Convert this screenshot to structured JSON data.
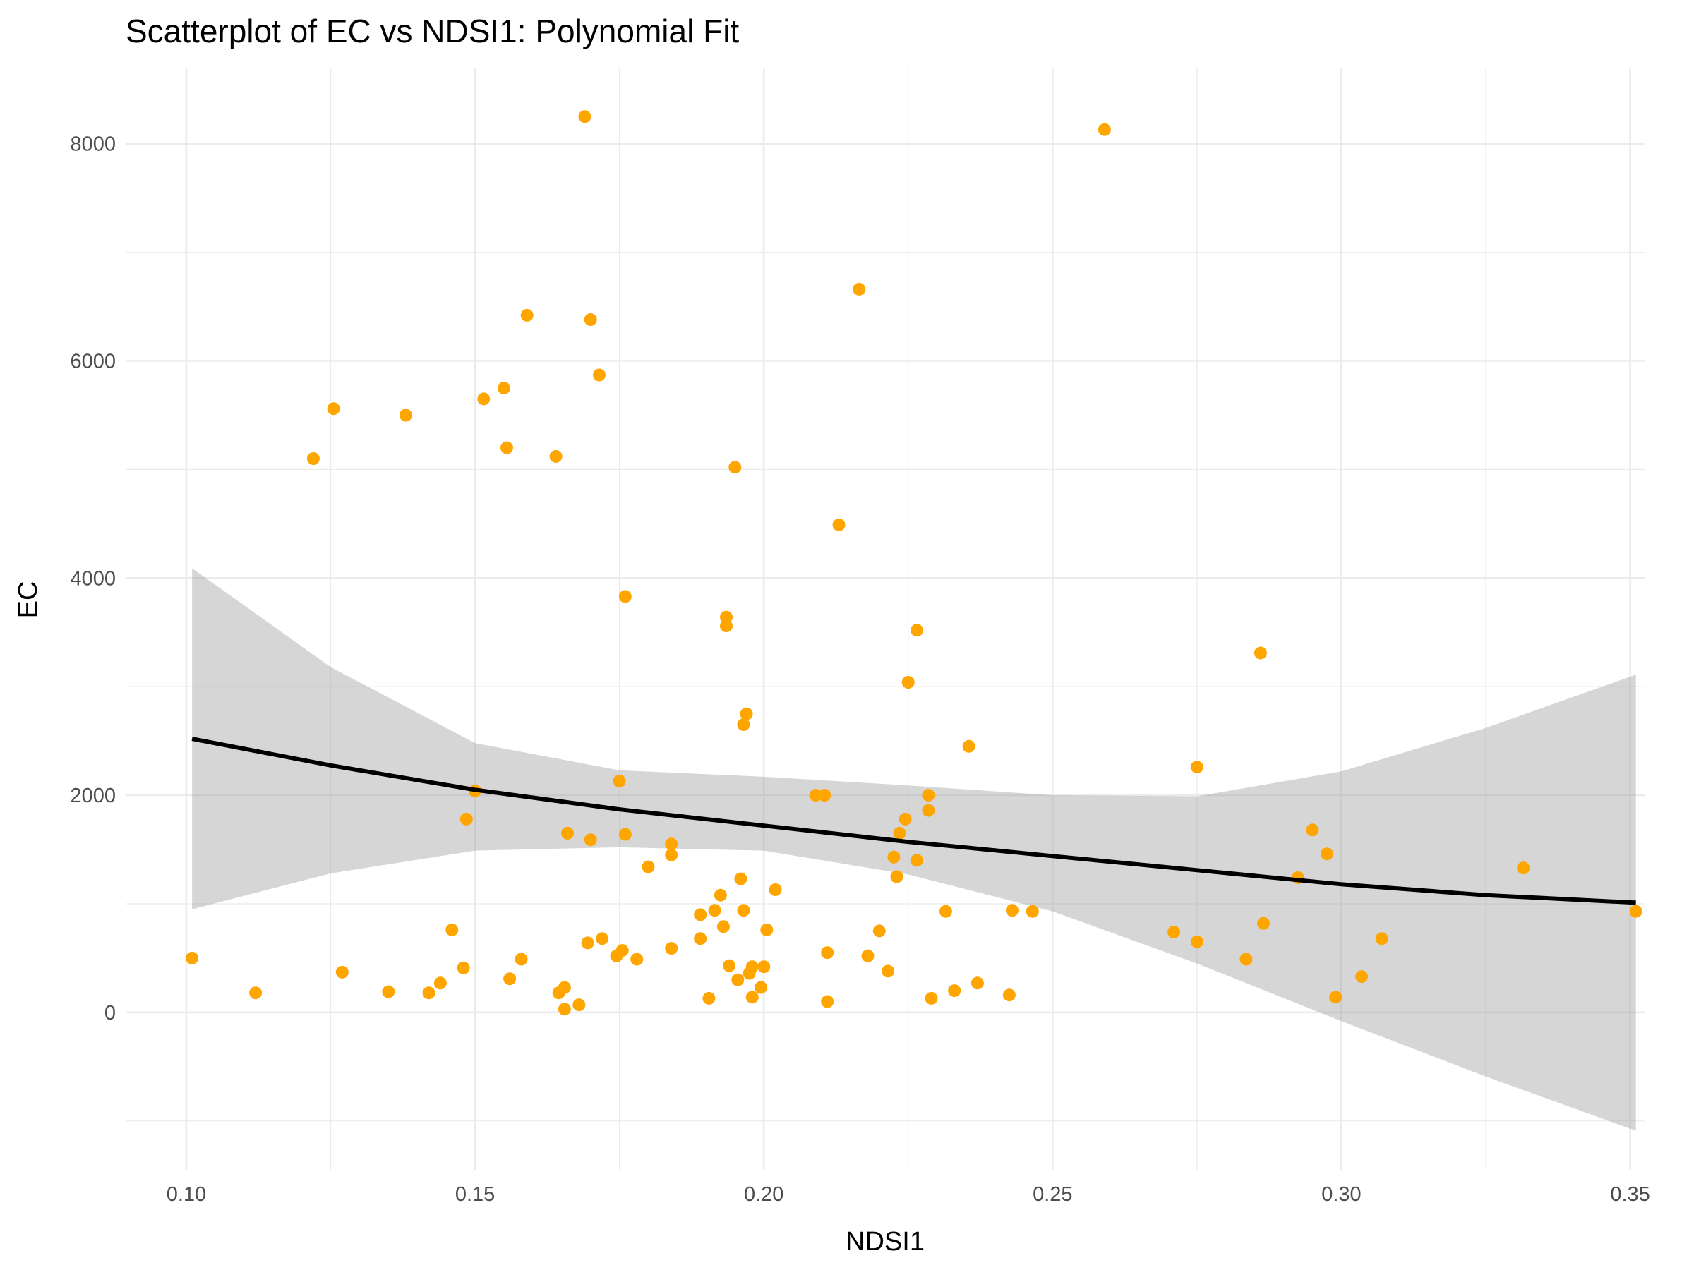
{
  "chart_data": {
    "type": "scatter",
    "title": "Scatterplot of EC vs NDSI1: Polynomial Fit",
    "xlabel": "NDSI1",
    "ylabel": "EC",
    "xlim": [
      0.0895,
      0.3525
    ],
    "ylim": [
      -1450,
      8700
    ],
    "x_ticks": [
      0.1,
      0.15,
      0.2,
      0.25,
      0.3,
      0.35
    ],
    "x_tick_labels": [
      "0.10",
      "0.15",
      "0.20",
      "0.25",
      "0.30",
      "0.35"
    ],
    "y_ticks": [
      0,
      2000,
      4000,
      6000,
      8000
    ],
    "y_tick_labels": [
      "0",
      "2000",
      "4000",
      "6000",
      "8000"
    ],
    "grid": true,
    "point_color": "#FFA500",
    "fit_color": "#000000",
    "band_color": "#999999",
    "points": {
      "x": [
        0.101,
        0.112,
        0.122,
        0.1255,
        0.127,
        0.135,
        0.138,
        0.142,
        0.144,
        0.146,
        0.148,
        0.1485,
        0.15,
        0.1515,
        0.155,
        0.1555,
        0.156,
        0.158,
        0.159,
        0.164,
        0.1645,
        0.1655,
        0.1655,
        0.166,
        0.168,
        0.169,
        0.1695,
        0.17,
        0.17,
        0.1715,
        0.172,
        0.1745,
        0.175,
        0.1755,
        0.176,
        0.176,
        0.178,
        0.18,
        0.184,
        0.184,
        0.184,
        0.189,
        0.189,
        0.1905,
        0.1915,
        0.1925,
        0.193,
        0.1935,
        0.1935,
        0.194,
        0.195,
        0.1955,
        0.196,
        0.1965,
        0.1965,
        0.197,
        0.1975,
        0.198,
        0.198,
        0.1995,
        0.2,
        0.2005,
        0.202,
        0.209,
        0.2105,
        0.211,
        0.211,
        0.213,
        0.2165,
        0.218,
        0.22,
        0.2215,
        0.2225,
        0.223,
        0.2235,
        0.2245,
        0.225,
        0.2265,
        0.2265,
        0.2285,
        0.2285,
        0.229,
        0.2315,
        0.233,
        0.2355,
        0.237,
        0.2425,
        0.243,
        0.2465,
        0.259,
        0.271,
        0.275,
        0.275,
        0.2835,
        0.286,
        0.2865,
        0.2925,
        0.295,
        0.2975,
        0.299,
        0.3035,
        0.307,
        0.3315,
        0.351
      ],
      "y": [
        500,
        180,
        5100,
        5560,
        370,
        190,
        5500,
        180,
        270,
        760,
        410,
        1780,
        2040,
        5650,
        5750,
        5200,
        310,
        490,
        6420,
        5120,
        180,
        230,
        30,
        1650,
        70,
        8250,
        640,
        1590,
        6380,
        5870,
        680,
        520,
        2130,
        570,
        1640,
        3830,
        490,
        1340,
        1550,
        1450,
        590,
        900,
        680,
        130,
        940,
        1080,
        790,
        3640,
        3560,
        430,
        5020,
        300,
        1230,
        940,
        2650,
        2750,
        360,
        140,
        420,
        230,
        420,
        760,
        1130,
        2000,
        2000,
        100,
        550,
        4490,
        6660,
        520,
        750,
        380,
        1430,
        1250,
        1650,
        1780,
        3040,
        3520,
        1400,
        2000,
        1860,
        130,
        930,
        200,
        2450,
        270,
        160,
        940,
        930,
        8130,
        740,
        650,
        2260,
        490,
        3310,
        820,
        1240,
        1680,
        1460,
        140,
        330,
        680,
        1330,
        930
      ]
    },
    "fit": {
      "x": [
        0.101,
        0.125,
        0.15,
        0.175,
        0.2,
        0.225,
        0.25,
        0.275,
        0.3,
        0.325,
        0.351
      ],
      "y": [
        2520,
        2275,
        2050,
        1870,
        1720,
        1570,
        1440,
        1310,
        1180,
        1080,
        1010
      ],
      "lower": [
        950,
        1280,
        1490,
        1520,
        1490,
        1270,
        930,
        450,
        -80,
        -590,
        -1090
      ],
      "upper": [
        4090,
        3180,
        2480,
        2230,
        2170,
        2090,
        2000,
        1990,
        2220,
        2620,
        3110
      ]
    }
  }
}
